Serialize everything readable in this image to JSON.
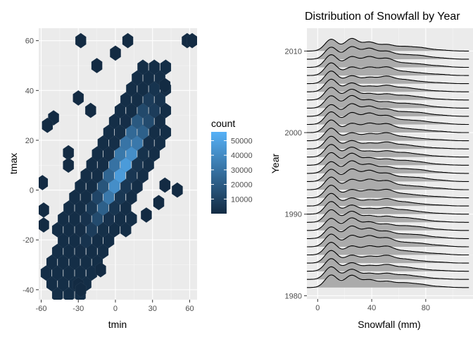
{
  "chart_data": [
    {
      "type": "hexbin",
      "title": "",
      "xlabel": "tmin",
      "ylabel": "tmax",
      "xlim": [
        -62,
        66
      ],
      "ylim": [
        -44,
        65
      ],
      "x_ticks": [
        -60,
        -30,
        0,
        30,
        60
      ],
      "x_tick_labels": [
        "-60",
        "-30",
        "0",
        "30",
        "60"
      ],
      "y_ticks": [
        -40,
        -20,
        0,
        20,
        40,
        60
      ],
      "y_tick_labels": [
        "-40",
        "-20",
        "0",
        "20",
        "40",
        "60"
      ],
      "grid": true,
      "legend": {
        "title": "count",
        "position": "right",
        "breaks": [
          10000,
          20000,
          30000,
          40000,
          50000
        ],
        "labels": [
          "10000",
          "20000",
          "30000",
          "40000",
          "50000"
        ],
        "range": [
          0,
          56000
        ],
        "color_low": "#132B43",
        "color_high": "#56B1F7"
      },
      "outliers": [
        {
          "x": -28,
          "y": 60
        },
        {
          "x": 10,
          "y": 60
        },
        {
          "x": 58,
          "y": 60
        },
        {
          "x": 62,
          "y": 60
        },
        {
          "x": 0,
          "y": 55
        },
        {
          "x": -15,
          "y": 50
        },
        {
          "x": -30,
          "y": 37
        },
        {
          "x": -50,
          "y": 29
        },
        {
          "x": -55,
          "y": 26
        },
        {
          "x": -20,
          "y": 32
        },
        {
          "x": -38,
          "y": 15
        },
        {
          "x": -38,
          "y": 10
        },
        {
          "x": -59,
          "y": 3
        },
        {
          "x": -58,
          "y": -8
        },
        {
          "x": -58,
          "y": -14
        },
        {
          "x": -30,
          "y": -38
        },
        {
          "x": -28,
          "y": -40
        },
        {
          "x": -12,
          "y": -32
        },
        {
          "x": 50,
          "y": 0
        },
        {
          "x": 40,
          "y": 2
        },
        {
          "x": 35,
          "y": -5
        },
        {
          "x": 25,
          "y": -10
        },
        {
          "x": 40,
          "y": 42
        }
      ]
    },
    {
      "type": "ridgeline",
      "title": "Distribution of Snowfall by Year",
      "xlabel": "Snowfall (mm)",
      "ylabel": "Year",
      "xlim": [
        -8,
        115
      ],
      "ylim": [
        1979.6,
        2012.8
      ],
      "x_ticks": [
        0,
        40,
        80
      ],
      "x_tick_labels": [
        "0",
        "40",
        "80"
      ],
      "y_ticks": [
        1980,
        1990,
        2000,
        2010
      ],
      "y_tick_labels": [
        "1980",
        "1990",
        "2000",
        "2010"
      ],
      "years": [
        1981,
        1982,
        1983,
        1984,
        1985,
        1986,
        1987,
        1988,
        1989,
        1990,
        1991,
        1992,
        1993,
        1994,
        1995,
        1996,
        1997,
        1998,
        1999,
        2000,
        2001,
        2002,
        2003,
        2004,
        2005,
        2006,
        2007,
        2008,
        2009,
        2010
      ],
      "density_components": [
        {
          "center": 10,
          "weight": 1.0
        },
        {
          "center": 25,
          "weight": 0.8
        },
        {
          "center": 38,
          "weight": 0.6
        },
        {
          "center": 51,
          "weight": 0.55
        },
        {
          "center": 64,
          "weight": 0.3
        },
        {
          "center": 76,
          "weight": 0.2
        },
        {
          "center": 90,
          "weight": 0.08
        }
      ],
      "x_range": [
        -8,
        112
      ],
      "fill": "#ABABAB",
      "grid": true
    }
  ]
}
